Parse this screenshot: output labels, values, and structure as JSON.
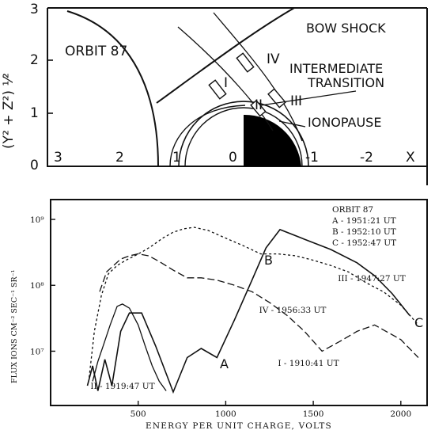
{
  "top_diagram": {
    "title": "ORBIT 87",
    "y_axis_label": "(Y² + Z²) ¹⁄²",
    "y_ticks": [
      "0",
      "1",
      "2",
      "3"
    ],
    "x_ticks": [
      "3",
      "2",
      "1",
      "0",
      "-1",
      "-2"
    ],
    "x_axis_letter": "X",
    "labels": {
      "bow_shock": "BOW SHOCK",
      "intermediate_transition": "INTERMEDIATE\nTRANSITION",
      "ionopause": "IONOPAUSE"
    },
    "segment_markers": [
      "I",
      "II",
      "III",
      "IV"
    ]
  },
  "chart_data": {
    "type": "line",
    "xlabel": "ENERGY PER UNIT CHARGE, VOLTS",
    "ylabel": "FLUX IONS CM⁻² SEC⁻¹ SR⁻¹",
    "x_ticks": [
      500,
      1000,
      1500,
      2000
    ],
    "y_ticks": [
      "10⁷",
      "10⁸",
      "10⁹"
    ],
    "y_scale": "log",
    "xlim": [
      0,
      2150
    ],
    "ylim": [
      1500000,
      2000000000
    ],
    "legend": {
      "title": "ORBIT 87",
      "entries": [
        "A - 1951:21 UT",
        "B - 1952:10 UT",
        "C - 1952:47 UT"
      ]
    },
    "point_labels": [
      "A",
      "B",
      "C"
    ],
    "series": [
      {
        "name": "III - 1947:27 UT",
        "label_anchor": "end",
        "x": [
          210,
          240,
          270,
          310,
          350,
          400,
          450,
          520,
          600,
          700,
          780,
          860,
          950,
          1050,
          1150,
          1230,
          1310,
          1450,
          1600,
          1750,
          1850,
          1950,
          2050
        ],
        "y": [
          3000000,
          6000000,
          2500000,
          7500000,
          3000000,
          20000000,
          38000000,
          38000000,
          12000000,
          2400000,
          8000000,
          11000000,
          8000000,
          30000000,
          120000000,
          370000000,
          700000000,
          500000000,
          350000000,
          220000000,
          140000000,
          75000000,
          35000000
        ]
      },
      {
        "name": "IV - 1956:33 UT",
        "label_anchor": "middle",
        "x": [
          280,
          320,
          360,
          400,
          450,
          500,
          560,
          620,
          700,
          780,
          860,
          950,
          1050,
          1150,
          1250,
          1350,
          1450,
          1550,
          1650,
          1750,
          1850,
          2000,
          2100
        ],
        "y": [
          80000000,
          160000000,
          200000000,
          250000000,
          280000000,
          300000000,
          280000000,
          230000000,
          170000000,
          130000000,
          130000000,
          120000000,
          100000000,
          80000000,
          55000000,
          35000000,
          20000000,
          10000000,
          14000000,
          20000000,
          25000000,
          15000000,
          8000000
        ]
      },
      {
        "name": "I - 1910:41 UT",
        "label_anchor": "middle",
        "x": [
          220,
          250,
          290,
          330,
          380,
          430,
          480,
          530,
          580,
          640,
          700,
          760,
          820,
          900,
          1000,
          1100,
          1200,
          1300,
          1400,
          1500,
          1600,
          1700,
          1800,
          1900,
          2000,
          2100
        ],
        "y": [
          4000000,
          20000000,
          70000000,
          150000000,
          200000000,
          240000000,
          280000000,
          330000000,
          400000000,
          520000000,
          640000000,
          720000000,
          760000000,
          680000000,
          520000000,
          400000000,
          300000000,
          300000000,
          280000000,
          240000000,
          200000000,
          160000000,
          110000000,
          80000000,
          50000000,
          25000000
        ]
      },
      {
        "name": "II - 1919:47 UT",
        "label_anchor": "middle",
        "x": [
          240,
          270,
          300,
          340,
          380,
          410,
          450,
          500,
          540,
          580,
          620,
          660
        ],
        "y": [
          3500000,
          7000000,
          12000000,
          25000000,
          48000000,
          52000000,
          45000000,
          25000000,
          12000000,
          6000000,
          3500000,
          2500000
        ]
      }
    ]
  }
}
